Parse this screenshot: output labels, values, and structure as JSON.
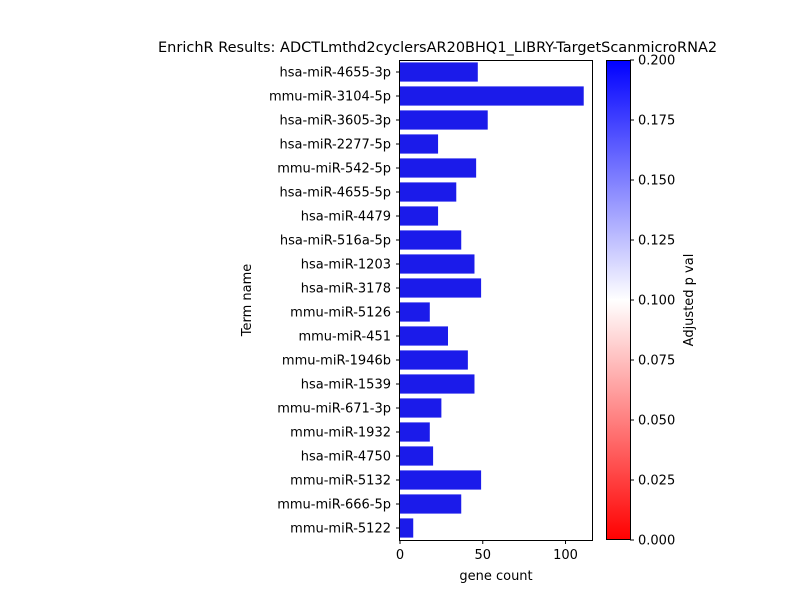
{
  "chart_data": {
    "type": "bar",
    "orientation": "horizontal",
    "title": "EnrichR Results: ADCTLmthd2cyclersAR20BHQ1_LIBRY-TargetScanmicroRNA2",
    "xlabel": "gene count",
    "ylabel": "Term name",
    "xlim": [
      0,
      116
    ],
    "xticks": [
      0,
      50,
      100
    ],
    "categories": [
      "hsa-miR-4655-3p",
      "mmu-miR-3104-5p",
      "hsa-miR-3605-3p",
      "hsa-miR-2277-5p",
      "mmu-miR-542-5p",
      "hsa-miR-4655-5p",
      "hsa-miR-4479",
      "hsa-miR-516a-5p",
      "hsa-miR-1203",
      "hsa-miR-3178",
      "mmu-miR-5126",
      "mmu-miR-451",
      "mmu-miR-1946b",
      "hsa-miR-1539",
      "mmu-miR-671-3p",
      "mmu-miR-1932",
      "hsa-miR-4750",
      "mmu-miR-5132",
      "mmu-miR-666-5p",
      "mmu-miR-5122"
    ],
    "values": [
      47,
      111,
      53,
      23,
      46,
      34,
      23,
      37,
      45,
      49,
      18,
      29,
      41,
      45,
      25,
      18,
      20,
      49,
      37,
      8
    ],
    "bar_color": "#1b1bea",
    "colorbar": {
      "label": "Adjusted p val",
      "range": [
        0,
        0.2
      ],
      "ticks": [
        "0.000",
        "0.025",
        "0.050",
        "0.075",
        "0.100",
        "0.125",
        "0.150",
        "0.175",
        "0.200"
      ],
      "colors": [
        "#ff0000",
        "#ffffff",
        "#0000ff"
      ]
    },
    "grid": false,
    "legend": "none"
  }
}
